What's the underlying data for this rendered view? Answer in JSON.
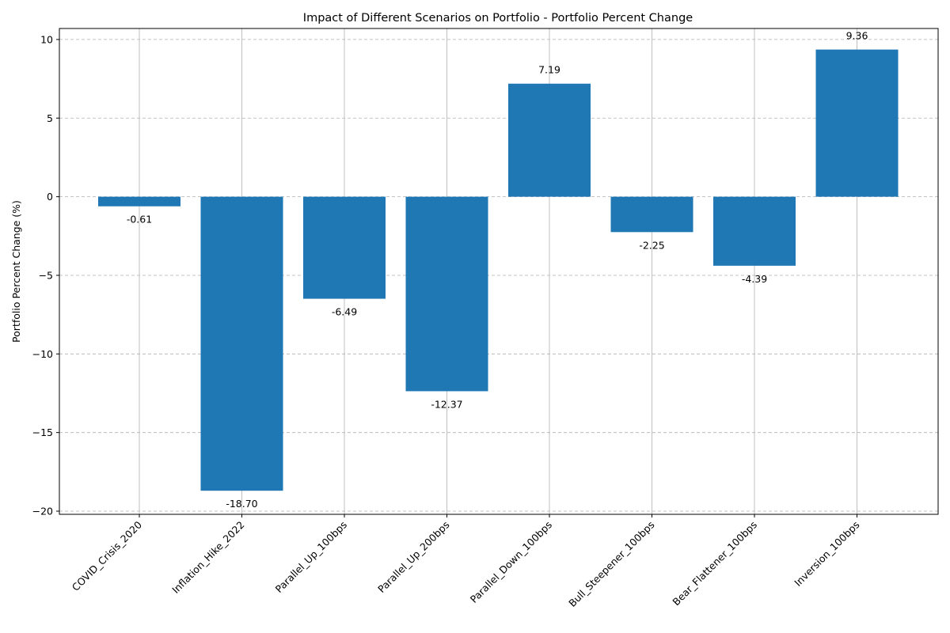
{
  "chart_data": {
    "type": "bar",
    "title": "Impact of Different Scenarios on Portfolio - Portfolio Percent Change",
    "xlabel": "",
    "ylabel": "Portfolio Percent Change (%)",
    "categories": [
      "COVID_Crisis_2020",
      "Inflation_Hike_2022",
      "Parallel_Up_100bps",
      "Parallel_Up_200bps",
      "Parallel_Down_100bps",
      "Bull_Steepener_100bps",
      "Bear_Flattener_100bps",
      "Inversion_100bps"
    ],
    "values": [
      -0.61,
      -18.7,
      -6.49,
      -12.37,
      7.19,
      -2.25,
      -4.39,
      9.36
    ],
    "data_labels": [
      "-0.61",
      "-18.70",
      "-6.49",
      "-12.37",
      "7.19",
      "-2.25",
      "-4.39",
      "9.36"
    ],
    "yticks": [
      10,
      5,
      0,
      -5,
      -10,
      -15,
      -20
    ],
    "ytick_labels": [
      "10",
      "5",
      "0",
      "−5",
      "−10",
      "−15",
      "−20"
    ],
    "ylim": [
      -20.2,
      10.7
    ],
    "bar_color": "#1f77b4",
    "grid": true,
    "legend": "none"
  }
}
